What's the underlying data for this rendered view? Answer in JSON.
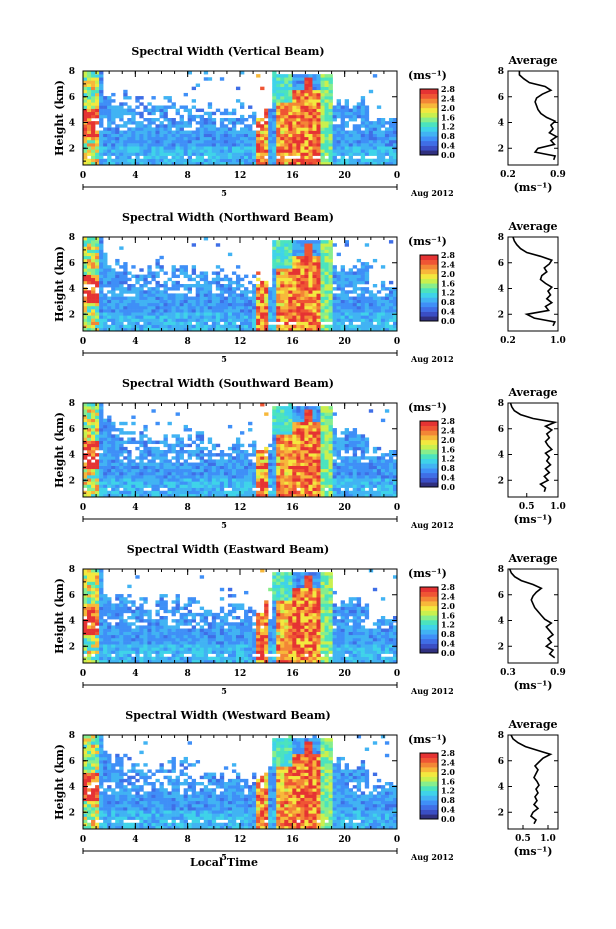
{
  "chart_data": {
    "type": "heatmap",
    "shared_xlabel": "Local Time",
    "date_label": "Aug 2012",
    "x_ticks": [
      "0",
      "4",
      "8",
      "12",
      "16",
      "20",
      "0"
    ],
    "x_date_tick": "5",
    "y_ticks": [
      "2",
      "4",
      "6",
      "8"
    ],
    "ylabel": "Height (km)",
    "ylim": [
      0.7,
      8
    ],
    "xlim": [
      0,
      24
    ],
    "colorbar_unit": "(ms⁻¹)",
    "colormap": [
      "#30307f",
      "#3a4ec4",
      "#3f6ee6",
      "#3f8ff7",
      "#41b3f3",
      "#3fd3e9",
      "#4be3be",
      "#87ee8c",
      "#c9f04e",
      "#f3e83f",
      "#f7b83a",
      "#f38636",
      "#ef5534",
      "#e53333"
    ],
    "panels": [
      {
        "title": "Spectral Width (Vertical Beam)",
        "colorbar_ticks": [
          "0.0",
          "0.4",
          "0.8",
          "1.2",
          "1.6",
          "2.0",
          "2.4",
          "2.8"
        ],
        "colorbar_range": [
          0,
          2.8
        ],
        "average_profile": {
          "title": "Average",
          "x_ticks": [
            "0.2",
            "0.9"
          ],
          "xlim": [
            0.2,
            0.9
          ],
          "xlabel": "(ms⁻¹)",
          "height_km": [
            1.1,
            1.4,
            1.7,
            2.0,
            2.3,
            2.6,
            2.9,
            3.2,
            3.5,
            3.8,
            4.1,
            4.4,
            4.7,
            5.0,
            5.3,
            5.6,
            5.9,
            6.2,
            6.5,
            6.8,
            7.1,
            7.4,
            7.7,
            8.0
          ],
          "values": [
            0.84,
            0.86,
            0.58,
            0.62,
            0.85,
            0.8,
            0.88,
            0.78,
            0.83,
            0.8,
            0.86,
            0.74,
            0.66,
            0.62,
            0.6,
            0.58,
            0.6,
            0.68,
            0.8,
            0.72,
            0.5,
            0.42,
            0.36,
            0.36
          ]
        }
      },
      {
        "title": "Spectral Width (Northward Beam)",
        "colorbar_ticks": [
          "0.0",
          "0.4",
          "0.8",
          "1.2",
          "1.6",
          "2.0",
          "2.4",
          "2.8"
        ],
        "colorbar_range": [
          0,
          2.8
        ],
        "average_profile": {
          "title": "Average",
          "x_ticks": [
            "0.2",
            "1.0"
          ],
          "xlim": [
            0.2,
            1.0
          ],
          "xlabel": "",
          "height_km": [
            1.1,
            1.4,
            1.7,
            2.0,
            2.3,
            2.6,
            2.9,
            3.2,
            3.5,
            3.8,
            4.1,
            4.4,
            4.7,
            5.0,
            5.3,
            5.6,
            5.9,
            6.2,
            6.5,
            6.8,
            7.1,
            7.4,
            7.7,
            8.0
          ],
          "values": [
            0.92,
            0.95,
            0.62,
            0.5,
            0.85,
            0.8,
            0.9,
            0.82,
            0.88,
            0.84,
            0.9,
            0.8,
            0.72,
            0.74,
            0.82,
            0.78,
            0.86,
            0.9,
            0.72,
            0.5,
            0.4,
            0.34,
            0.3,
            0.28
          ]
        }
      },
      {
        "title": "Spectral Width (Southward Beam)",
        "colorbar_ticks": [
          "0.0",
          "0.4",
          "0.8",
          "1.2",
          "1.6",
          "2.0",
          "2.4",
          "2.8"
        ],
        "colorbar_range": [
          0,
          2.8
        ],
        "average_profile": {
          "title": "Average",
          "x_ticks": [
            "0.5",
            "1.0"
          ],
          "xlim": [
            0.2,
            1.0
          ],
          "xlabel": "(ms⁻¹)",
          "height_km": [
            1.1,
            1.4,
            1.7,
            2.0,
            2.3,
            2.6,
            2.9,
            3.2,
            3.5,
            3.8,
            4.1,
            4.4,
            4.7,
            5.0,
            5.3,
            5.6,
            5.9,
            6.2,
            6.5,
            6.8,
            7.1,
            7.4,
            7.7,
            8.0
          ],
          "values": [
            0.78,
            0.8,
            0.72,
            0.84,
            0.78,
            0.86,
            0.8,
            0.88,
            0.82,
            0.86,
            0.8,
            0.9,
            0.84,
            0.8,
            0.86,
            0.82,
            0.9,
            0.8,
            0.95,
            0.6,
            0.4,
            0.3,
            0.26,
            0.24
          ]
        }
      },
      {
        "title": "Spectral Width (Eastward Beam)",
        "colorbar_ticks": [
          "0.0",
          "0.4",
          "0.8",
          "1.2",
          "1.6",
          "2.0",
          "2.4",
          "2.8"
        ],
        "colorbar_range": [
          0,
          2.8
        ],
        "average_profile": {
          "title": "Average",
          "x_ticks": [
            "0.3",
            "0.9"
          ],
          "xlim": [
            0.3,
            0.9
          ],
          "xlabel": "(ms⁻¹)",
          "height_km": [
            1.1,
            1.4,
            1.7,
            2.0,
            2.3,
            2.6,
            2.9,
            3.2,
            3.5,
            3.8,
            4.1,
            4.4,
            4.7,
            5.0,
            5.3,
            5.6,
            5.9,
            6.2,
            6.5,
            6.8,
            7.1,
            7.4,
            7.7,
            8.0
          ],
          "values": [
            0.86,
            0.8,
            0.84,
            0.76,
            0.82,
            0.78,
            0.84,
            0.8,
            0.76,
            0.82,
            0.74,
            0.7,
            0.66,
            0.62,
            0.6,
            0.58,
            0.6,
            0.64,
            0.7,
            0.6,
            0.46,
            0.38,
            0.34,
            0.32
          ]
        }
      },
      {
        "title": "Spectral Width (Westward Beam)",
        "colorbar_ticks": [
          "0.0",
          "0.4",
          "0.8",
          "1.2",
          "1.6",
          "2.0",
          "2.4",
          "2.8"
        ],
        "colorbar_range": [
          0,
          2.8
        ],
        "average_profile": {
          "title": "Average",
          "x_ticks": [
            "0.5",
            "1.0"
          ],
          "xlim": [
            0.2,
            1.2
          ],
          "xlabel": "(ms⁻¹)",
          "height_km": [
            1.1,
            1.4,
            1.7,
            2.0,
            2.3,
            2.6,
            2.9,
            3.2,
            3.5,
            3.8,
            4.1,
            4.4,
            4.7,
            5.0,
            5.3,
            5.6,
            5.9,
            6.2,
            6.5,
            6.8,
            7.1,
            7.4,
            7.7,
            8.0
          ],
          "values": [
            0.72,
            0.76,
            0.66,
            0.7,
            0.8,
            0.72,
            0.78,
            0.74,
            0.8,
            0.76,
            0.82,
            0.78,
            0.72,
            0.76,
            0.8,
            0.74,
            0.82,
            0.9,
            1.05,
            0.8,
            0.55,
            0.4,
            0.3,
            0.26
          ]
        }
      }
    ]
  }
}
